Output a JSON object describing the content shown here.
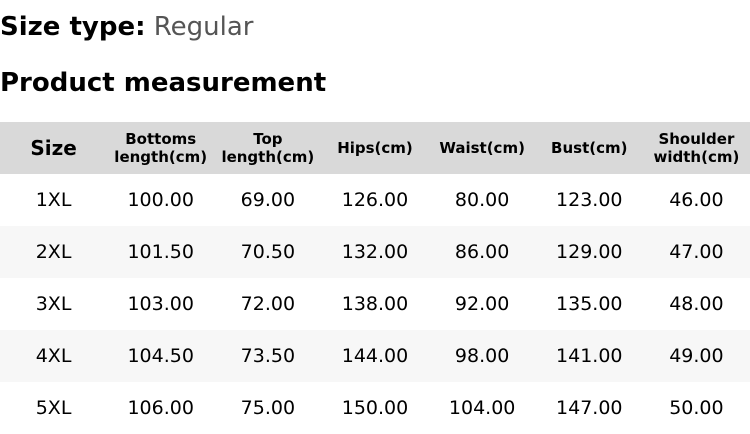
{
  "size_type": {
    "label": "Size type:",
    "value": "Regular"
  },
  "section_title": "Product measurement",
  "table": {
    "headers": [
      "Size",
      "Bottoms length(cm)",
      "Top length(cm)",
      "Hips(cm)",
      "Waist(cm)",
      "Bust(cm)",
      "Shoulder width(cm)"
    ],
    "rows": [
      [
        "1XL",
        "100.00",
        "69.00",
        "126.00",
        "80.00",
        "123.00",
        "46.00"
      ],
      [
        "2XL",
        "101.50",
        "70.50",
        "132.00",
        "86.00",
        "129.00",
        "47.00"
      ],
      [
        "3XL",
        "103.00",
        "72.00",
        "138.00",
        "92.00",
        "135.00",
        "48.00"
      ],
      [
        "4XL",
        "104.50",
        "73.50",
        "144.00",
        "98.00",
        "141.00",
        "49.00"
      ],
      [
        "5XL",
        "106.00",
        "75.00",
        "150.00",
        "104.00",
        "147.00",
        "50.00"
      ]
    ]
  }
}
